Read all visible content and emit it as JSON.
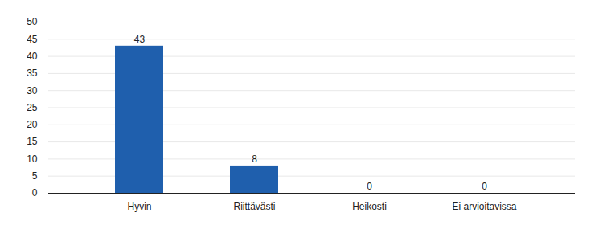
{
  "chart_data": {
    "type": "bar",
    "categories": [
      "Hyvin",
      "Riittävästi",
      "Heikosti",
      "Ei arvioitavissa"
    ],
    "values": [
      43,
      8,
      0,
      0
    ],
    "color": "#1f5fad",
    "ylim": [
      0,
      50
    ],
    "yticks": [
      0,
      5,
      10,
      15,
      20,
      25,
      30,
      35,
      40,
      45,
      50
    ],
    "grid": true,
    "data_labels": true
  }
}
